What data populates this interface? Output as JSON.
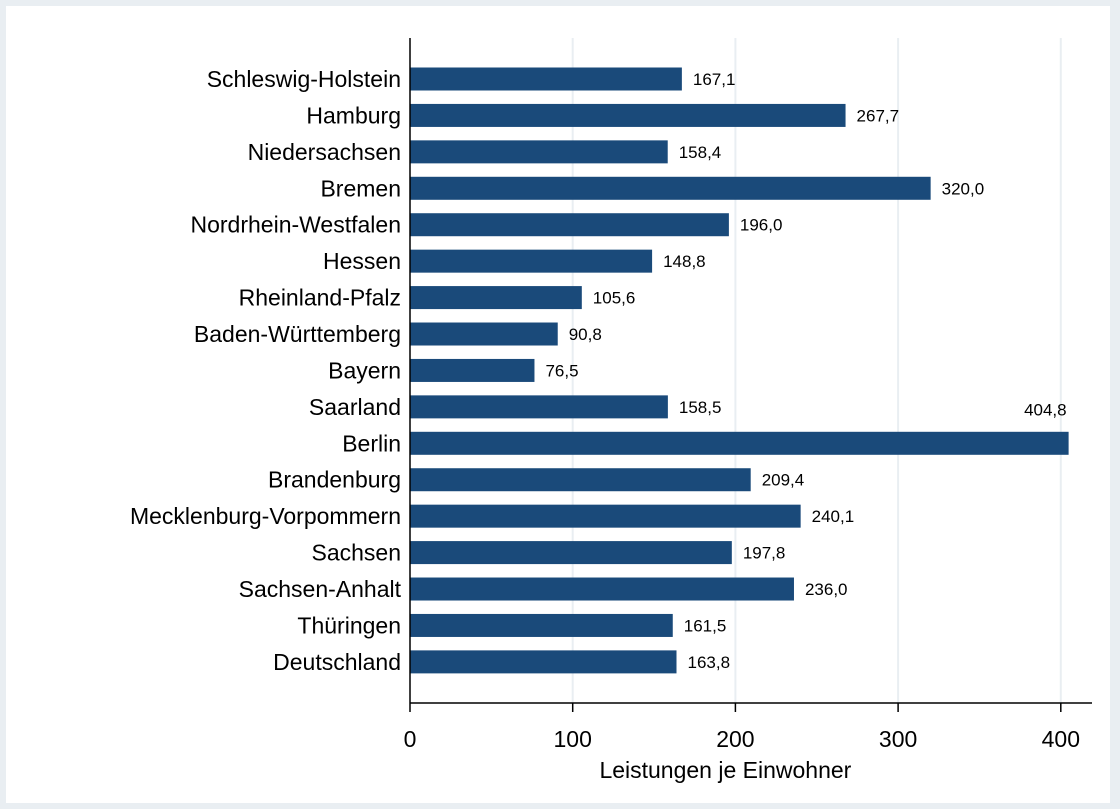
{
  "chart_data": {
    "type": "bar",
    "orientation": "horizontal",
    "categories": [
      "Schleswig-Holstein",
      "Hamburg",
      "Niedersachsen",
      "Bremen",
      "Nordrhein-Westfalen",
      "Hessen",
      "Rheinland-Pfalz",
      "Baden-Württemberg",
      "Bayern",
      "Saarland",
      "Berlin",
      "Brandenburg",
      "Mecklenburg-Vorpommern",
      "Sachsen",
      "Sachsen-Anhalt",
      "Thüringen",
      "Deutschland"
    ],
    "values": [
      167.1,
      267.7,
      158.4,
      320.0,
      196.0,
      148.8,
      105.6,
      90.8,
      76.5,
      158.5,
      404.8,
      209.4,
      240.1,
      197.8,
      236.0,
      161.5,
      163.8
    ],
    "value_labels": [
      "167,1",
      "267,7",
      "158,4",
      "320,0",
      "196,0",
      "148,8",
      "105,6",
      "90,8",
      "76,5",
      "158,5",
      "404,8",
      "209,4",
      "240,1",
      "197,8",
      "236,0",
      "161,5",
      "163,8"
    ],
    "title": "",
    "xlabel": "Leistungen je Einwohner",
    "ylabel": "",
    "xlim": [
      0,
      420
    ],
    "xticks": [
      0,
      100,
      200,
      300,
      400
    ],
    "xtick_labels": [
      "0",
      "100",
      "200",
      "300",
      "400"
    ],
    "grid": true,
    "legend": "none",
    "colors": {
      "bar": "#1a4a7a",
      "background": "#e9eef2",
      "plot_background": "#ffffff",
      "grid": "#e9eef2"
    }
  }
}
